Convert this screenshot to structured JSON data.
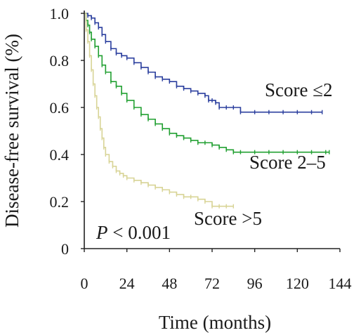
{
  "chart_data": {
    "type": "line",
    "xlabel": "Time (months)",
    "ylabel": "Disease-free survival (%)",
    "xlim": [
      0,
      144
    ],
    "ylim": [
      0,
      1.0
    ],
    "xticks": [
      0,
      24,
      48,
      72,
      96,
      120,
      144
    ],
    "xtick_labels": [
      "0",
      "24",
      "48",
      "72",
      "96",
      "120",
      "144"
    ],
    "yticks": [
      0,
      0.2,
      0.4,
      0.6,
      0.8,
      1.0
    ],
    "ytick_labels": [
      "0",
      "0.2",
      "0.4",
      "0.6",
      "0.8",
      "1.0"
    ],
    "grid": false,
    "annotation": {
      "prefix": "P",
      "text": " < 0.001"
    },
    "series": [
      {
        "name": "Score ≤2",
        "color": "#2b3f9e",
        "x": [
          0,
          2,
          4,
          6,
          8,
          10,
          12,
          15,
          18,
          21,
          24,
          28,
          32,
          36,
          40,
          44,
          48,
          52,
          56,
          60,
          64,
          68,
          70,
          72,
          74,
          76,
          80,
          84,
          88,
          96,
          104,
          112,
          120,
          128,
          134
        ],
        "y": [
          1.0,
          0.99,
          0.98,
          0.96,
          0.94,
          0.91,
          0.88,
          0.85,
          0.83,
          0.82,
          0.81,
          0.79,
          0.77,
          0.75,
          0.73,
          0.72,
          0.71,
          0.69,
          0.68,
          0.67,
          0.66,
          0.65,
          0.63,
          0.63,
          0.62,
          0.6,
          0.6,
          0.6,
          0.58,
          0.58,
          0.58,
          0.58,
          0.58,
          0.58,
          0.58
        ]
      },
      {
        "name": "Score 2–5",
        "color": "#22a032",
        "x": [
          0,
          1,
          2,
          3,
          4,
          6,
          8,
          10,
          12,
          15,
          18,
          21,
          24,
          28,
          32,
          36,
          40,
          44,
          48,
          52,
          56,
          60,
          64,
          68,
          72,
          76,
          80,
          84,
          88,
          96,
          104,
          112,
          120,
          128,
          136,
          138
        ],
        "y": [
          1.0,
          0.97,
          0.95,
          0.92,
          0.89,
          0.86,
          0.82,
          0.78,
          0.75,
          0.71,
          0.69,
          0.66,
          0.63,
          0.6,
          0.57,
          0.55,
          0.53,
          0.51,
          0.49,
          0.48,
          0.47,
          0.46,
          0.45,
          0.45,
          0.44,
          0.43,
          0.42,
          0.41,
          0.41,
          0.41,
          0.41,
          0.41,
          0.41,
          0.41,
          0.41,
          0.41
        ]
      },
      {
        "name": "Score >5",
        "color": "#d8d496",
        "x": [
          0,
          1,
          2,
          3,
          4,
          5,
          6,
          7,
          8,
          9,
          10,
          11,
          12,
          14,
          16,
          18,
          20,
          22,
          24,
          28,
          32,
          36,
          40,
          44,
          48,
          52,
          56,
          60,
          64,
          68,
          72,
          76,
          80,
          84
        ],
        "y": [
          1.0,
          0.93,
          0.88,
          0.82,
          0.76,
          0.7,
          0.65,
          0.6,
          0.56,
          0.51,
          0.47,
          0.43,
          0.4,
          0.37,
          0.35,
          0.33,
          0.32,
          0.31,
          0.3,
          0.29,
          0.28,
          0.27,
          0.26,
          0.25,
          0.24,
          0.23,
          0.22,
          0.22,
          0.21,
          0.2,
          0.18,
          0.18,
          0.18,
          0.18
        ]
      }
    ]
  }
}
